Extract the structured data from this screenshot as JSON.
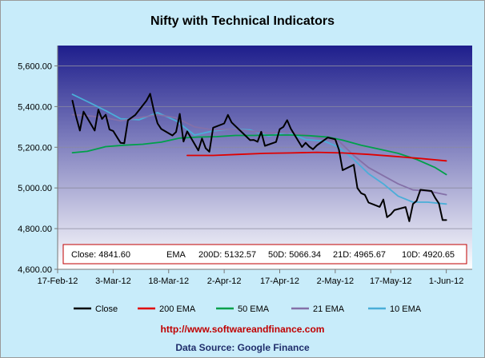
{
  "chart_data": {
    "type": "line",
    "title": "Nifty with Technical Indicators",
    "xlabel": "",
    "ylabel": "",
    "ylim": [
      4600,
      5700
    ],
    "yticks": [
      4600,
      4800,
      5000,
      5200,
      5400,
      5600
    ],
    "ytick_labels": [
      "4,600.00",
      "4,800.00",
      "5,000.00",
      "5,200.00",
      "5,400.00",
      "5,600.00"
    ],
    "xlim": [
      "2012-02-17",
      "2012-06-08"
    ],
    "xticks": [
      "2012-02-17",
      "2012-03-03",
      "2012-03-18",
      "2012-04-02",
      "2012-04-17",
      "2012-05-02",
      "2012-05-17",
      "2012-06-01"
    ],
    "xtick_labels": [
      "17-Feb-12",
      "3-Mar-12",
      "18-Mar-12",
      "2-Apr-12",
      "17-Apr-12",
      "2-May-12",
      "17-May-12",
      "1-Jun-12"
    ],
    "grid": "horizontal",
    "legend": "bottom",
    "background_gradient": [
      "#1e1e8c",
      "#ffffff"
    ],
    "series": [
      {
        "name": "Close",
        "color": "#000000",
        "x": [
          "2012-02-21",
          "2012-02-22",
          "2012-02-23",
          "2012-02-24",
          "2012-02-27",
          "2012-02-28",
          "2012-02-29",
          "2012-03-01",
          "2012-03-02",
          "2012-03-03",
          "2012-03-05",
          "2012-03-06",
          "2012-03-07",
          "2012-03-09",
          "2012-03-12",
          "2012-03-13",
          "2012-03-14",
          "2012-03-15",
          "2012-03-16",
          "2012-03-19",
          "2012-03-20",
          "2012-03-21",
          "2012-03-22",
          "2012-03-23",
          "2012-03-26",
          "2012-03-27",
          "2012-03-28",
          "2012-03-29",
          "2012-03-30",
          "2012-04-02",
          "2012-04-03",
          "2012-04-04",
          "2012-04-09",
          "2012-04-10",
          "2012-04-11",
          "2012-04-12",
          "2012-04-13",
          "2012-04-16",
          "2012-04-17",
          "2012-04-18",
          "2012-04-19",
          "2012-04-20",
          "2012-04-23",
          "2012-04-24",
          "2012-04-25",
          "2012-04-26",
          "2012-04-27",
          "2012-04-30",
          "2012-05-02",
          "2012-05-03",
          "2012-05-04",
          "2012-05-07",
          "2012-05-08",
          "2012-05-09",
          "2012-05-10",
          "2012-05-11",
          "2012-05-14",
          "2012-05-15",
          "2012-05-16",
          "2012-05-17",
          "2012-05-18",
          "2012-05-21",
          "2012-05-22",
          "2012-05-23",
          "2012-05-24",
          "2012-05-25",
          "2012-05-28",
          "2012-05-29",
          "2012-05-30",
          "2012-05-31",
          "2012-06-01"
        ],
        "y": [
          5429,
          5350,
          5282,
          5375,
          5282,
          5385,
          5339,
          5360,
          5287,
          5280,
          5222,
          5220,
          5333,
          5359,
          5429,
          5463,
          5380,
          5317,
          5290,
          5258,
          5275,
          5364,
          5228,
          5278,
          5184,
          5243,
          5195,
          5178,
          5296,
          5317,
          5359,
          5322,
          5235,
          5236,
          5227,
          5276,
          5207,
          5226,
          5289,
          5300,
          5333,
          5291,
          5201,
          5222,
          5203,
          5190,
          5209,
          5248,
          5239,
          5188,
          5087,
          5114,
          4999,
          4974,
          4966,
          4928,
          4907,
          4943,
          4856,
          4870,
          4891,
          4906,
          4836,
          4921,
          4937,
          4991,
          4985,
          4951,
          4924,
          4842,
          4842
        ]
      },
      {
        "name": "200 EMA",
        "color": "#e00000",
        "x": [
          "2012-03-23",
          "2012-03-30",
          "2012-04-06",
          "2012-04-13",
          "2012-04-20",
          "2012-04-27",
          "2012-05-04",
          "2012-05-11",
          "2012-05-18",
          "2012-05-25",
          "2012-06-01"
        ],
        "y": [
          5160,
          5160,
          5165,
          5170,
          5172,
          5175,
          5172,
          5165,
          5155,
          5145,
          5133
        ]
      },
      {
        "name": "50 EMA",
        "color": "#00a04a",
        "x": [
          "2012-02-21",
          "2012-02-25",
          "2012-03-01",
          "2012-03-06",
          "2012-03-11",
          "2012-03-16",
          "2012-03-21",
          "2012-03-26",
          "2012-03-31",
          "2012-04-05",
          "2012-04-10",
          "2012-04-15",
          "2012-04-20",
          "2012-04-25",
          "2012-04-30",
          "2012-05-04",
          "2012-05-09",
          "2012-05-14",
          "2012-05-19",
          "2012-05-24",
          "2012-05-29",
          "2012-06-01"
        ],
        "y": [
          5173,
          5180,
          5203,
          5210,
          5215,
          5225,
          5245,
          5250,
          5252,
          5258,
          5258,
          5260,
          5260,
          5257,
          5250,
          5235,
          5210,
          5190,
          5170,
          5140,
          5100,
          5066
        ]
      },
      {
        "name": "21 EMA",
        "color": "#8470a8",
        "x": [
          "2012-02-21",
          "2012-02-25",
          "2012-03-01",
          "2012-03-05",
          "2012-03-10",
          "2012-03-15",
          "2012-03-20",
          "2012-03-25",
          "2012-03-30",
          "2012-04-04",
          "2012-04-09",
          "2012-04-14",
          "2012-04-19",
          "2012-04-24",
          "2012-04-29",
          "2012-05-03",
          "2012-05-07",
          "2012-05-11",
          "2012-05-15",
          "2012-05-19",
          "2012-05-23",
          "2012-05-27",
          "2012-06-01"
        ],
        "y": [
          5360,
          5355,
          5345,
          5330,
          5345,
          5360,
          5345,
          5300,
          5285,
          5290,
          5280,
          5270,
          5275,
          5262,
          5240,
          5230,
          5160,
          5100,
          5060,
          5020,
          4990,
          4985,
          4966
        ]
      },
      {
        "name": "10 EMA",
        "color": "#4aaed8",
        "x": [
          "2012-02-21",
          "2012-02-25",
          "2012-03-01",
          "2012-03-05",
          "2012-03-10",
          "2012-03-15",
          "2012-03-20",
          "2012-03-25",
          "2012-03-30",
          "2012-04-04",
          "2012-04-09",
          "2012-04-14",
          "2012-04-19",
          "2012-04-24",
          "2012-04-29",
          "2012-05-03",
          "2012-05-07",
          "2012-05-11",
          "2012-05-15",
          "2012-05-19",
          "2012-05-23",
          "2012-05-27",
          "2012-06-01"
        ],
        "y": [
          5460,
          5425,
          5380,
          5340,
          5335,
          5370,
          5330,
          5260,
          5280,
          5290,
          5285,
          5255,
          5275,
          5238,
          5230,
          5200,
          5140,
          5070,
          5020,
          4960,
          4930,
          4930,
          4921
        ]
      }
    ],
    "summary": {
      "close_label": "Close: 4841.60",
      "ema_label": "EMA",
      "ema200_label": "200D: 5132.57",
      "ema50_label": "50D: 5066.34",
      "ema21_label": "21D: 4965.67",
      "ema10_label": "10D: 4920.65"
    },
    "source_url": "http://www.softwareandfinance.com",
    "source_text": "Data Source: Google Finance"
  }
}
